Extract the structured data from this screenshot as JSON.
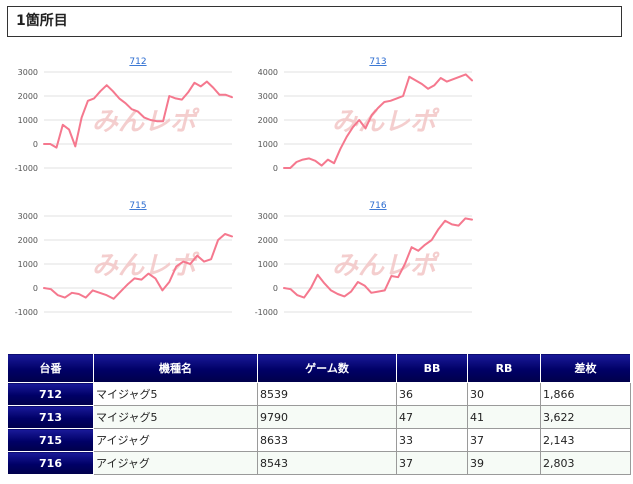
{
  "section": {
    "title": "1箇所目"
  },
  "watermark": {
    "text": "みんレポ",
    "color": "#f3c9c9"
  },
  "line_color": "#f5788e",
  "chart_data": [
    {
      "type": "line",
      "title": "712",
      "ylim": [
        -1000,
        3000
      ],
      "yticks": [
        -1000,
        0,
        1000,
        2000,
        3000
      ],
      "grid": true,
      "series": [
        {
          "values": [
            0,
            0,
            -150,
            800,
            600,
            -100,
            1100,
            1800,
            1900,
            2200,
            2450,
            2200,
            1900,
            1700,
            1450,
            1350,
            1100,
            1000,
            950,
            950,
            2000,
            1900,
            1850,
            2150,
            2550,
            2400,
            2600,
            2350,
            2050,
            2050,
            1950
          ]
        }
      ]
    },
    {
      "type": "line",
      "title": "713",
      "ylim": [
        0,
        4000
      ],
      "yticks": [
        0,
        1000,
        2000,
        3000,
        4000
      ],
      "grid": true,
      "series": [
        {
          "values": [
            0,
            0,
            250,
            350,
            400,
            300,
            100,
            350,
            200,
            800,
            1300,
            1700,
            2000,
            1650,
            2200,
            2500,
            2750,
            2800,
            2900,
            3000,
            3800,
            3650,
            3500,
            3300,
            3450,
            3750,
            3600,
            3700,
            3800,
            3900,
            3650
          ]
        }
      ]
    },
    {
      "type": "line",
      "title": "715",
      "ylim": [
        -1000,
        3000
      ],
      "yticks": [
        -1000,
        0,
        1000,
        2000,
        3000
      ],
      "grid": true,
      "series": [
        {
          "values": [
            0,
            -50,
            -300,
            -400,
            -200,
            -250,
            -400,
            -100,
            -200,
            -300,
            -450,
            -150,
            150,
            400,
            350,
            600,
            400,
            -100,
            250,
            900,
            1100,
            1000,
            1350,
            1100,
            1200,
            2000,
            2250,
            2150
          ]
        }
      ]
    },
    {
      "type": "line",
      "title": "716",
      "ylim": [
        -1000,
        3000
      ],
      "yticks": [
        -1000,
        0,
        1000,
        2000,
        3000
      ],
      "grid": true,
      "series": [
        {
          "values": [
            0,
            -50,
            -300,
            -400,
            0,
            550,
            200,
            -100,
            -250,
            -350,
            -150,
            250,
            100,
            -200,
            -150,
            -100,
            500,
            450,
            1000,
            1700,
            1550,
            1800,
            2000,
            2450,
            2800,
            2650,
            2600,
            2900,
            2850
          ]
        }
      ]
    }
  ],
  "table": {
    "headers": [
      "台番",
      "機種名",
      "ゲーム数",
      "BB",
      "RB",
      "差枚"
    ],
    "rows": [
      {
        "unit": "712",
        "machine": "マイジャグ5",
        "games": "8539",
        "bb": "36",
        "rb": "30",
        "diff": "1,866"
      },
      {
        "unit": "713",
        "machine": "マイジャグ5",
        "games": "9790",
        "bb": "47",
        "rb": "41",
        "diff": "3,622"
      },
      {
        "unit": "715",
        "machine": "アイジャグ",
        "games": "8633",
        "bb": "33",
        "rb": "37",
        "diff": "2,143"
      },
      {
        "unit": "716",
        "machine": "アイジャグ",
        "games": "8543",
        "bb": "37",
        "rb": "39",
        "diff": "2,803"
      }
    ]
  }
}
